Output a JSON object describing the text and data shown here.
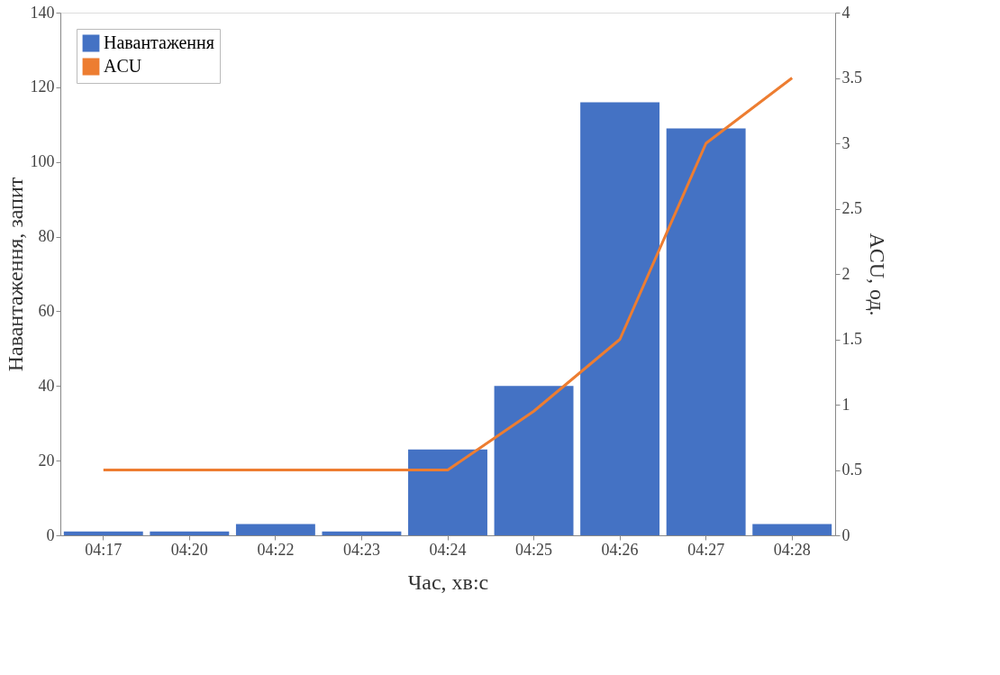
{
  "chart_data": {
    "type": "bar",
    "xlabel": "Час, хв:с",
    "ylabel": "Навантаження, запит",
    "y2label": "ACU, од.",
    "categories": [
      "04:17",
      "04:20",
      "04:22",
      "04:23",
      "04:24",
      "04:25",
      "04:26",
      "04:27",
      "04:28"
    ],
    "series": [
      {
        "name": "Навантаження",
        "color": "#4472c4",
        "values": [
          1,
          1,
          3,
          1,
          23,
          40,
          116,
          109,
          3
        ]
      },
      {
        "name": "ACU",
        "type": "line",
        "axis": "y2",
        "color": "#ed7d31",
        "values": [
          0.5,
          0.5,
          0.5,
          0.5,
          0.5,
          0.95,
          1.5,
          3,
          3.5
        ]
      }
    ],
    "ylim": [
      0,
      140
    ],
    "yticks": [
      0,
      20,
      40,
      60,
      80,
      100,
      120,
      140
    ],
    "y2lim": [
      0,
      4
    ],
    "y2ticks": [
      0,
      0.5,
      1,
      1.5,
      2,
      2.5,
      3,
      3.5,
      4
    ],
    "legend": "top left",
    "grid": false
  }
}
